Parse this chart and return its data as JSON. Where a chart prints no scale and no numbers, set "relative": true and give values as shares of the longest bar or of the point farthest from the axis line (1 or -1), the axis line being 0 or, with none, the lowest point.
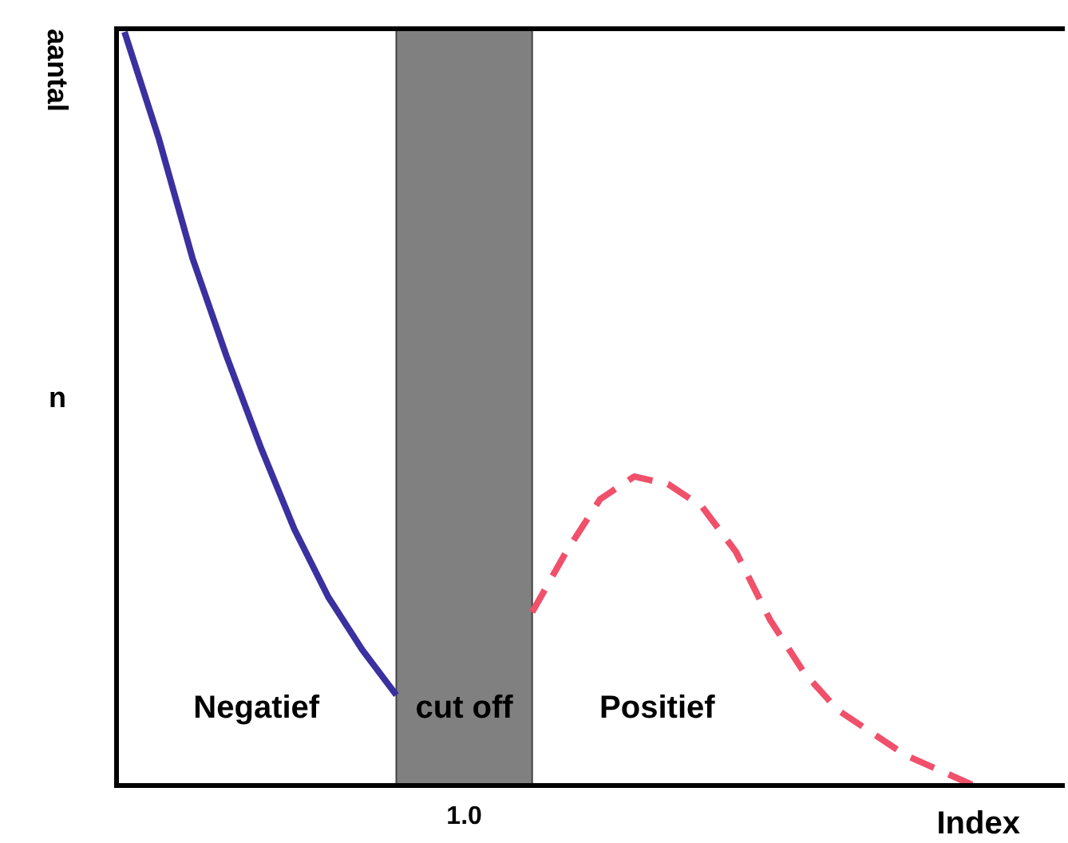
{
  "chart_data": {
    "type": "line",
    "relative": true,
    "xlabel": "Index",
    "ylabel": "aantal",
    "categories": [
      null,
      null,
      null,
      null,
      null,
      null,
      null,
      null,
      null,
      null,
      null,
      null,
      null,
      null,
      null,
      null,
      null,
      null,
      null,
      null,
      null,
      null,
      null,
      null,
      null,
      null
    ],
    "series": [
      {
        "color": "#3b30a0",
        "line_style": "solid",
        "values": [
          1.0,
          0.86,
          0.7,
          0.57,
          0.45,
          0.34,
          0.25,
          0.18,
          0.12,
          null,
          null,
          null,
          null,
          null,
          null,
          null,
          null,
          null,
          null,
          null,
          null,
          null,
          null,
          null,
          null,
          null
        ]
      },
      {
        "color": "#f0506a",
        "line_style": "dashed",
        "values": [
          null,
          null,
          null,
          null,
          null,
          null,
          null,
          null,
          null,
          null,
          null,
          null,
          0.23,
          0.31,
          0.38,
          0.41,
          0.4,
          0.37,
          0.31,
          0.22,
          0.15,
          0.1,
          0.07,
          0.04,
          0.02,
          0.0
        ]
      }
    ],
    "annotations": [
      "Negatief",
      "cut off",
      "Positief",
      "1.0",
      "n"
    ]
  }
}
